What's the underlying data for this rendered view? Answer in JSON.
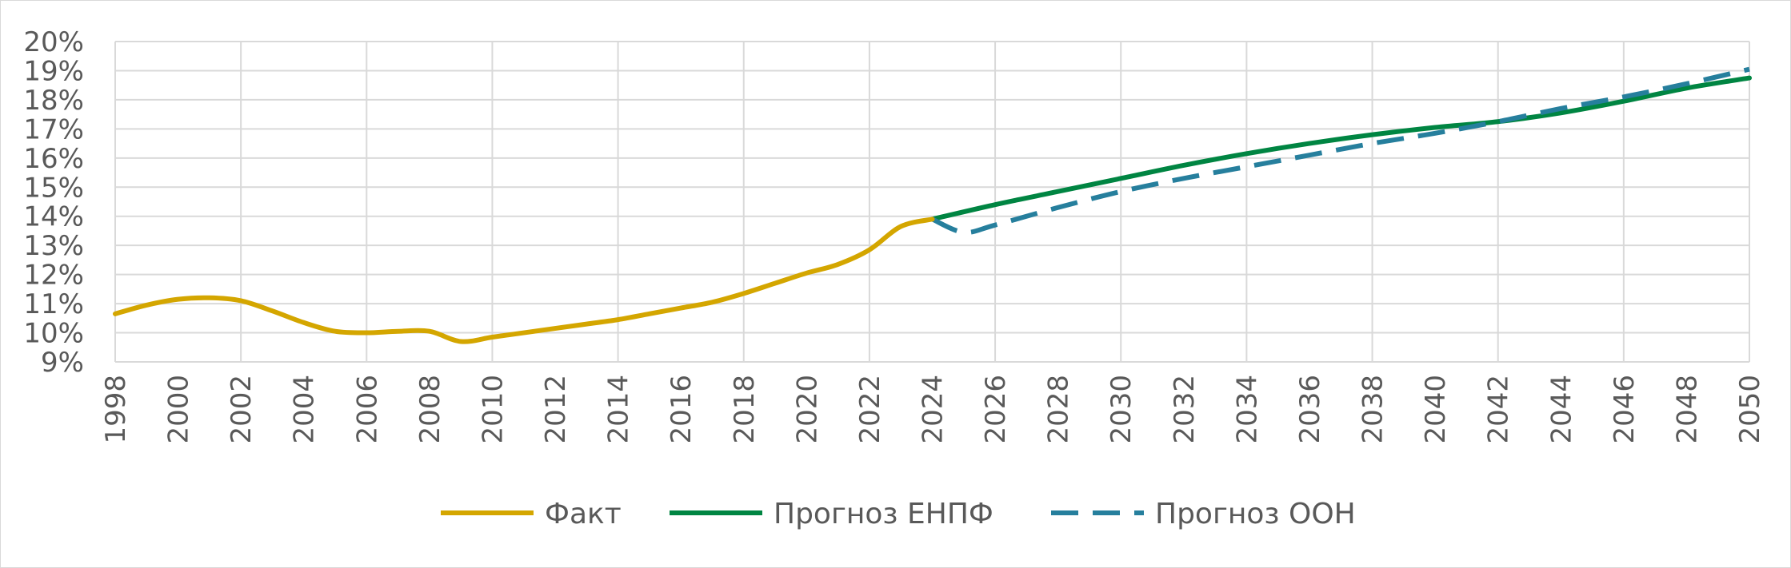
{
  "chart_data": {
    "type": "line",
    "title": "",
    "xlabel": "",
    "ylabel": "",
    "xlim": [
      1998,
      2050
    ],
    "ylim": [
      9,
      20
    ],
    "y_unit": "%",
    "x_ticks": [
      "1998",
      "2000",
      "2002",
      "2004",
      "2006",
      "2008",
      "2010",
      "2012",
      "2014",
      "2016",
      "2018",
      "2020",
      "2022",
      "2024",
      "2026",
      "2028",
      "2030",
      "2032",
      "2034",
      "2036",
      "2038",
      "2040",
      "2042",
      "2044",
      "2046",
      "2048",
      "2050"
    ],
    "y_ticks": [
      "9%",
      "10%",
      "11%",
      "12%",
      "13%",
      "14%",
      "15%",
      "16%",
      "17%",
      "18%",
      "19%",
      "20%"
    ],
    "grid": true,
    "legend_position": "bottom",
    "series": [
      {
        "name": "Факт",
        "color": "#D4A600",
        "style": "solid",
        "x": [
          1998,
          1999,
          2000,
          2001,
          2002,
          2003,
          2004,
          2005,
          2006,
          2007,
          2008,
          2009,
          2010,
          2011,
          2012,
          2013,
          2014,
          2015,
          2016,
          2017,
          2018,
          2019,
          2020,
          2021,
          2022,
          2023,
          2024
        ],
        "values": [
          10.65,
          10.95,
          11.15,
          11.2,
          11.1,
          10.75,
          10.35,
          10.05,
          10.0,
          10.05,
          10.05,
          9.7,
          9.85,
          10.0,
          10.15,
          10.3,
          10.45,
          10.65,
          10.85,
          11.05,
          11.35,
          11.7,
          12.05,
          12.35,
          12.85,
          13.65,
          13.9
        ]
      },
      {
        "name": "Прогноз ЕНПФ",
        "color": "#008542",
        "style": "solid",
        "x": [
          2024,
          2026,
          2028,
          2030,
          2032,
          2034,
          2036,
          2038,
          2040,
          2042,
          2044,
          2046,
          2048,
          2050
        ],
        "values": [
          13.9,
          14.4,
          14.85,
          15.3,
          15.75,
          16.15,
          16.5,
          16.8,
          17.05,
          17.25,
          17.55,
          17.95,
          18.4,
          18.75
        ]
      },
      {
        "name": "Прогноз ООН",
        "color": "#267F9D",
        "style": "dashed",
        "x": [
          2024,
          2025,
          2026,
          2028,
          2030,
          2032,
          2034,
          2036,
          2038,
          2040,
          2042,
          2044,
          2046,
          2048,
          2050
        ],
        "values": [
          13.9,
          13.45,
          13.7,
          14.3,
          14.85,
          15.3,
          15.7,
          16.1,
          16.5,
          16.85,
          17.25,
          17.7,
          18.1,
          18.55,
          19.05
        ]
      }
    ]
  }
}
